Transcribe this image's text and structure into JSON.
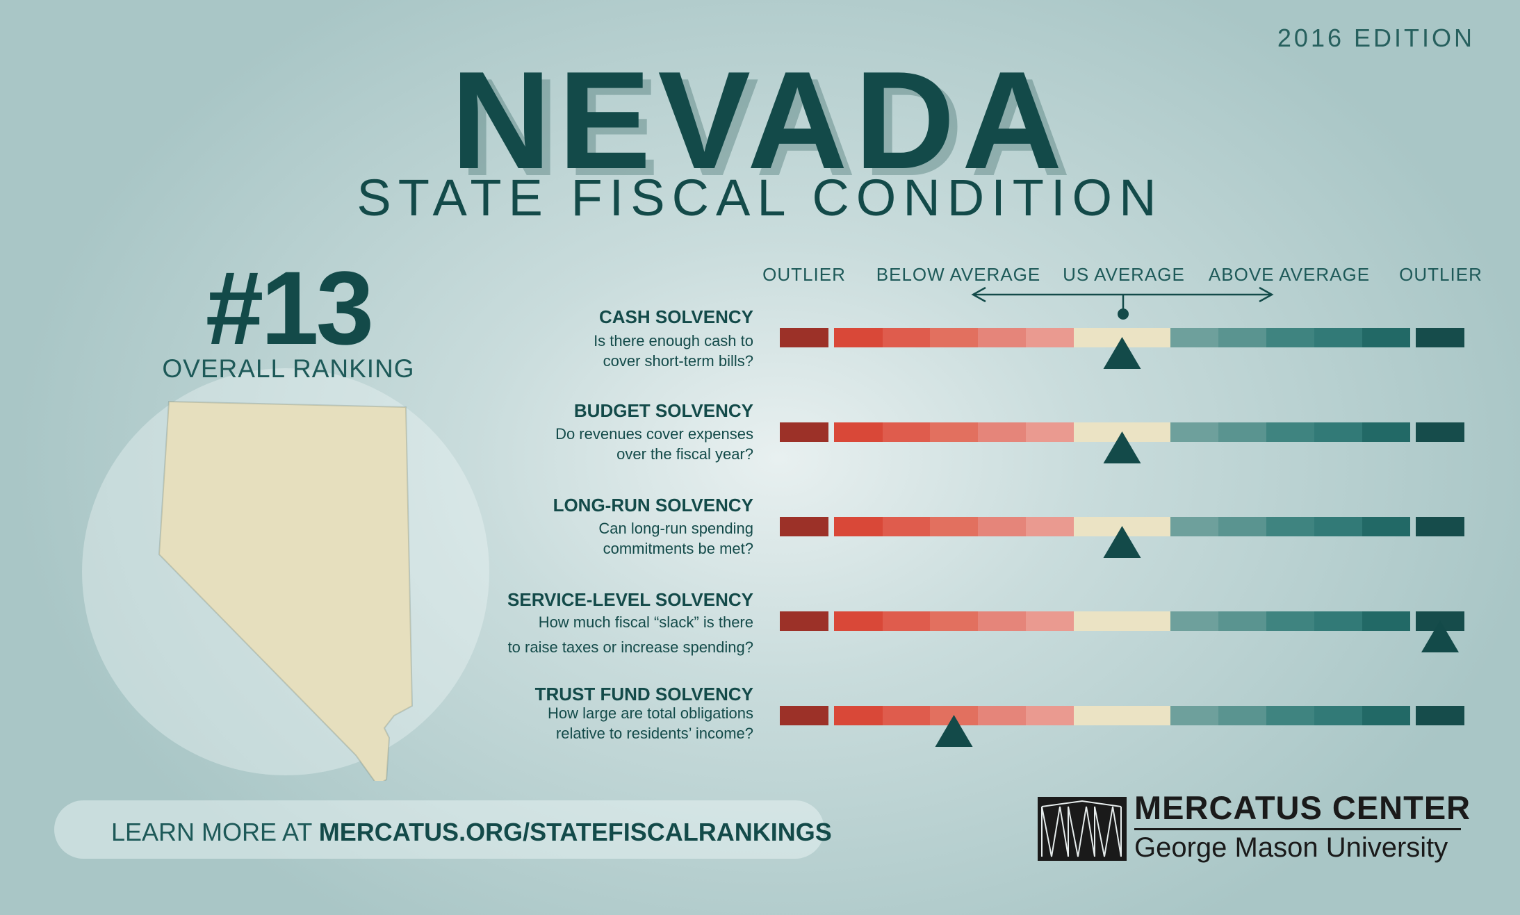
{
  "header": {
    "edition": "2016 EDITION",
    "state": "NEVADA",
    "subtitle": "STATE FISCAL CONDITION"
  },
  "ranking": {
    "rank": "#13",
    "label": "OVERALL RANKING"
  },
  "scale": {
    "columns": [
      "OUTLIER",
      "BELOW AVERAGE",
      "US AVERAGE",
      "ABOVE AVERAGE",
      "OUTLIER"
    ],
    "segment_colors": [
      "#9c3128",
      "#d94838",
      "#df5c4d",
      "#e2705f",
      "#e5857a",
      "#ea9a90",
      "#ebe3c4",
      "#6ea09c",
      "#5a9490",
      "#3f8480",
      "#327a77",
      "#226966",
      "#164c4b"
    ]
  },
  "categories": [
    {
      "title": "CASH SOLVENCY",
      "question": [
        "Is there enough cash to",
        "cover short-term bills?"
      ],
      "position_index": 6
    },
    {
      "title": "BUDGET SOLVENCY",
      "question": [
        "Do revenues cover expenses",
        "over the fiscal year?"
      ],
      "position_index": 6
    },
    {
      "title": "LONG-RUN SOLVENCY",
      "question": [
        "Can long-run spending",
        "commitments be met?"
      ],
      "position_index": 6
    },
    {
      "title": "SERVICE-LEVEL SOLVENCY",
      "question": [
        "How much fiscal “slack” is there",
        "to raise taxes or increase spending?"
      ],
      "position_index": 12
    },
    {
      "title": "TRUST FUND SOLVENCY",
      "question": [
        "How large are total obligations",
        "relative to residents’ income?"
      ],
      "position_index": 3
    }
  ],
  "footer": {
    "prefix": "LEARN MORE AT ",
    "url": "MERCATUS.ORG/STATEFISCALRANKINGS"
  },
  "logo": {
    "line1": "MERCATUS CENTER",
    "line2": "George Mason University"
  }
}
